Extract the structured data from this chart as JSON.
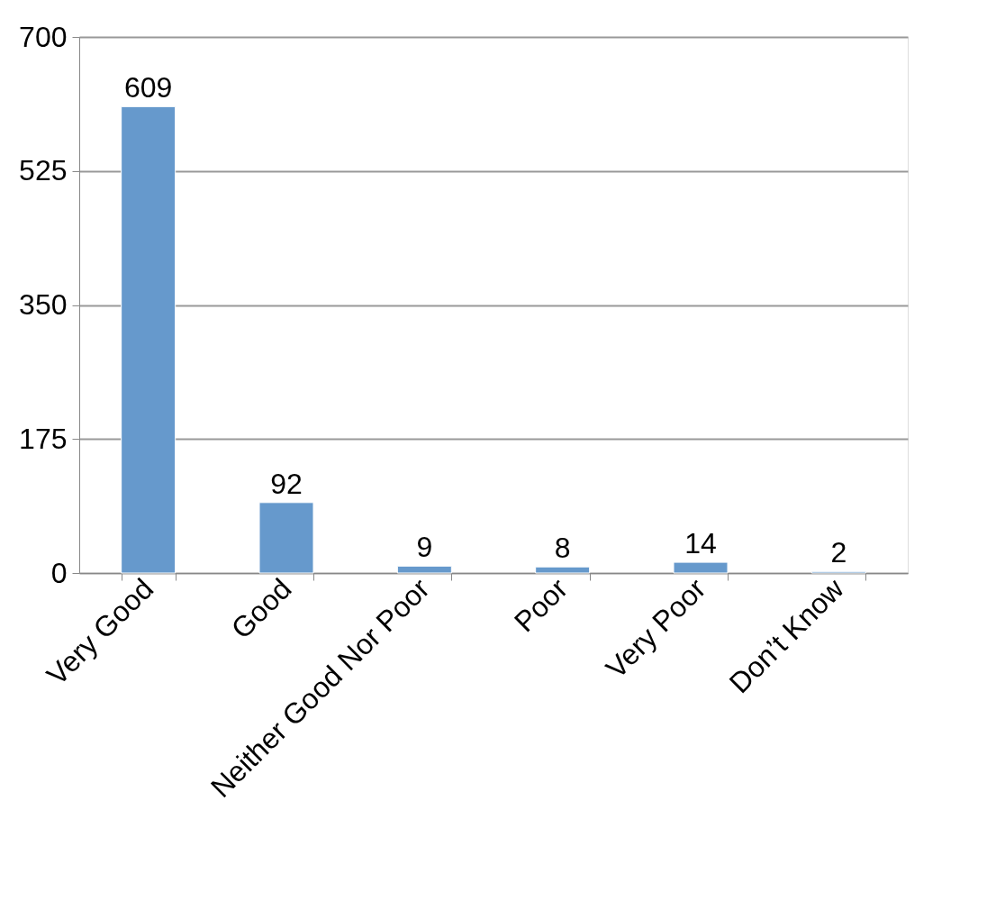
{
  "chart_data": {
    "type": "bar",
    "categories": [
      "Very Good",
      "Good",
      "Neither Good Nor Poor",
      "Poor",
      "Very Poor",
      "Don’t Know"
    ],
    "values": [
      609,
      92,
      9,
      8,
      14,
      2
    ],
    "color": "#6699cc",
    "ylim": [
      0,
      700
    ],
    "yticks": [
      0,
      175,
      350,
      525,
      700
    ],
    "grid": "y",
    "data_labels": true
  }
}
